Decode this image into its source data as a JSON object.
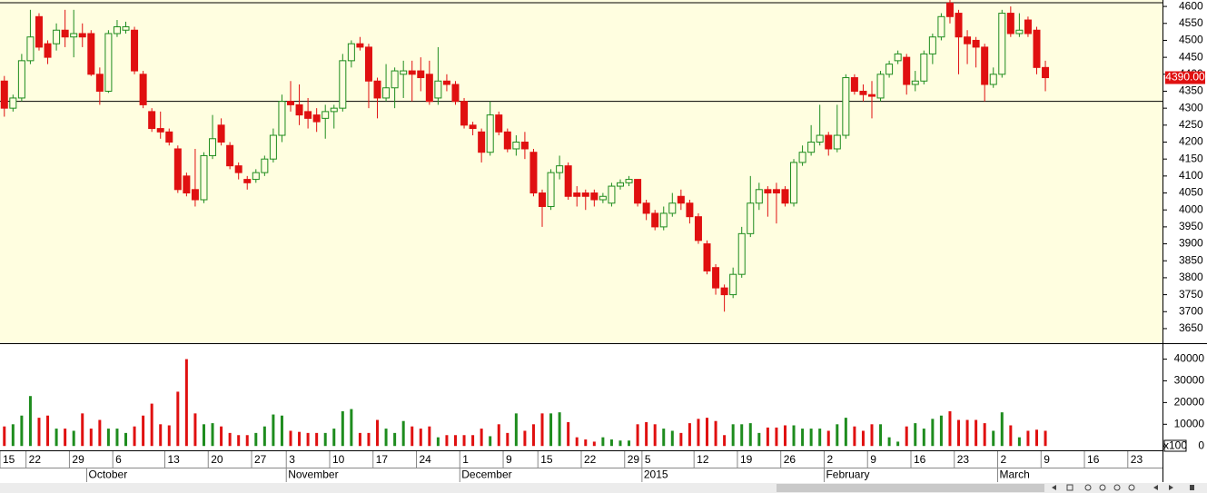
{
  "chart_data": {
    "type": "candlestick",
    "categories": [
      "15",
      null,
      null,
      "22",
      null,
      null,
      null,
      null,
      "29",
      null,
      null,
      null,
      null,
      "6",
      null,
      null,
      null,
      null,
      null,
      "13",
      null,
      null,
      null,
      null,
      "20",
      null,
      null,
      null,
      null,
      "27",
      null,
      null,
      null,
      "3",
      null,
      null,
      null,
      null,
      "10",
      null,
      null,
      null,
      null,
      "17",
      null,
      null,
      null,
      null,
      "24",
      null,
      null,
      null,
      null,
      "1",
      null,
      null,
      null,
      null,
      "9",
      null,
      null,
      null,
      "15",
      null,
      null,
      null,
      null,
      "22",
      null,
      null,
      null,
      null,
      "29",
      null,
      "5",
      null,
      null,
      null,
      null,
      null,
      "12",
      null,
      null,
      null,
      null,
      "19",
      null,
      null,
      null,
      null,
      "26",
      null,
      null,
      null,
      null,
      "2",
      null,
      null,
      null,
      null,
      "9",
      null,
      null,
      null,
      null,
      "16",
      null,
      null,
      null,
      null,
      "23",
      null,
      null,
      null,
      null,
      "2",
      null,
      null,
      null,
      null,
      "9",
      null,
      null,
      null,
      null,
      "16",
      null,
      null,
      null,
      null,
      "23",
      null,
      null,
      null
    ],
    "months": [
      null,
      null,
      null,
      null,
      null,
      null,
      null,
      null,
      null,
      null,
      "October",
      null,
      null,
      null,
      null,
      null,
      null,
      null,
      null,
      null,
      null,
      null,
      null,
      null,
      null,
      null,
      null,
      null,
      null,
      null,
      null,
      null,
      null,
      "November",
      null,
      null,
      null,
      null,
      null,
      null,
      null,
      null,
      null,
      null,
      null,
      null,
      null,
      null,
      null,
      null,
      null,
      null,
      null,
      "December",
      null,
      null,
      null,
      null,
      null,
      null,
      null,
      null,
      null,
      null,
      null,
      null,
      null,
      null,
      null,
      null,
      null,
      null,
      null,
      null,
      "2015",
      null,
      null,
      null,
      null,
      null,
      null,
      null,
      null,
      null,
      null,
      null,
      null,
      null,
      null,
      null,
      null,
      null,
      null,
      null,
      null,
      "February",
      null,
      null,
      null,
      null,
      null,
      null,
      null,
      null,
      null,
      null,
      null,
      null,
      null,
      null,
      null,
      null,
      null,
      null,
      null,
      "March",
      null,
      null,
      null,
      null,
      null,
      null,
      null,
      null,
      null,
      null,
      null,
      null,
      null,
      null,
      null,
      null,
      null,
      null
    ],
    "open": [
      4380,
      4300,
      4330,
      4440,
      4570,
      4490,
      4490,
      4530,
      4510,
      4520,
      4520,
      4400,
      4350,
      4520,
      4530,
      4530,
      4400,
      4290,
      4240,
      4230,
      4180,
      4100,
      4060,
      4030,
      4160,
      4250,
      4190,
      4130,
      4090,
      4090,
      4110,
      4150,
      4220,
      4320,
      4310,
      4290,
      4280,
      4270,
      4290,
      4300,
      4440,
      4490,
      4480,
      4380,
      4330,
      4360,
      4400,
      4410,
      4410,
      4400,
      4330,
      4380,
      4370,
      4320,
      4250,
      4230,
      4170,
      4280,
      4230,
      4180,
      4200,
      4170,
      4050,
      4010,
      4110,
      4130,
      4050,
      4050,
      4050,
      4030,
      4020,
      4070,
      4080,
      4090,
      4020,
      3990,
      3950,
      3990,
      4040,
      4020,
      3980,
      3900,
      3830,
      3770,
      3750,
      3810,
      3930,
      4020,
      4060,
      4060,
      4060,
      4020,
      4140,
      4170,
      4200,
      4220,
      4180,
      4220,
      4390,
      4350,
      4340,
      4330,
      4400,
      4440,
      4450,
      4370,
      4380,
      4460,
      4510,
      4610,
      4580,
      4510,
      4500,
      4480,
      4370,
      4400,
      4580,
      4520,
      4560,
      4530,
      4420,
      null,
      null,
      null,
      null,
      null,
      null,
      null,
      null,
      null,
      null,
      null,
      null,
      null
    ],
    "high": [
      4395,
      4340,
      4460,
      4590,
      4580,
      4500,
      4550,
      4590,
      4590,
      4550,
      4530,
      4420,
      4530,
      4560,
      4555,
      4540,
      4410,
      4300,
      4290,
      4240,
      4190,
      4110,
      4180,
      4170,
      4280,
      4270,
      4200,
      4140,
      4100,
      4120,
      4160,
      4240,
      4340,
      4380,
      4370,
      4330,
      4300,
      4310,
      4310,
      4460,
      4500,
      4510,
      4490,
      4390,
      4430,
      4420,
      4440,
      4440,
      4450,
      4440,
      4480,
      4400,
      4380,
      4330,
      4260,
      4240,
      4320,
      4290,
      4240,
      4220,
      4230,
      4180,
      4060,
      4120,
      4160,
      4140,
      4070,
      4060,
      4060,
      4050,
      4080,
      4090,
      4100,
      4090,
      4030,
      4000,
      4010,
      4050,
      4060,
      4030,
      3990,
      3910,
      3840,
      3780,
      3830,
      3950,
      4100,
      4080,
      4070,
      4080,
      4070,
      4150,
      4190,
      4250,
      4310,
      4230,
      4310,
      4400,
      4400,
      4370,
      4380,
      4410,
      4440,
      4470,
      4460,
      4410,
      4470,
      4520,
      4580,
      4620,
      4590,
      4530,
      4510,
      4490,
      4420,
      4590,
      4600,
      4580,
      4570,
      4540,
      4440,
      null,
      null,
      null,
      null,
      null,
      null,
      null,
      null,
      null,
      null,
      null,
      null,
      null
    ],
    "low": [
      4275,
      4290,
      4320,
      4430,
      4470,
      4430,
      4470,
      4480,
      4450,
      4480,
      4395,
      4310,
      4345,
      4510,
      4520,
      4400,
      4300,
      4230,
      4210,
      4190,
      4050,
      4040,
      4010,
      4020,
      4150,
      4190,
      4120,
      4090,
      4060,
      4080,
      4100,
      4140,
      4200,
      4290,
      4250,
      4240,
      4230,
      4210,
      4240,
      4290,
      4420,
      4470,
      4300,
      4270,
      4320,
      4300,
      4330,
      4320,
      4350,
      4310,
      4310,
      4350,
      4310,
      4240,
      4220,
      4140,
      4160,
      4220,
      4170,
      4160,
      4150,
      4040,
      3950,
      4000,
      4090,
      4030,
      4010,
      4000,
      4010,
      4020,
      4010,
      4060,
      4070,
      4010,
      3970,
      3940,
      3940,
      3980,
      4000,
      3960,
      3900,
      3810,
      3750,
      3700,
      3740,
      3800,
      3920,
      4000,
      3980,
      3960,
      4010,
      4010,
      4130,
      4160,
      4190,
      4160,
      4170,
      4210,
      4340,
      4320,
      4270,
      4320,
      4390,
      4430,
      4340,
      4350,
      4370,
      4430,
      4500,
      4550,
      4400,
      4430,
      4420,
      4320,
      4360,
      4390,
      4510,
      4510,
      4510,
      4400,
      4350,
      null,
      null,
      null,
      null,
      null,
      null,
      null,
      null,
      null,
      null,
      null,
      null,
      null
    ],
    "close": [
      4300,
      4330,
      4440,
      4510,
      4480,
      4450,
      4530,
      4510,
      4520,
      4510,
      4400,
      4350,
      4520,
      4540,
      4540,
      4410,
      4310,
      4240,
      4230,
      4200,
      4060,
      4050,
      4030,
      4160,
      4210,
      4200,
      4130,
      4110,
      4080,
      4110,
      4150,
      4220,
      4320,
      4310,
      4280,
      4270,
      4260,
      4290,
      4300,
      4440,
      4490,
      4480,
      4380,
      4330,
      4360,
      4410,
      4410,
      4400,
      4390,
      4320,
      4380,
      4370,
      4320,
      4250,
      4240,
      4170,
      4280,
      4230,
      4180,
      4200,
      4180,
      4050,
      4010,
      4110,
      4130,
      4040,
      4040,
      4040,
      4030,
      4040,
      4070,
      4080,
      4090,
      4020,
      3990,
      3950,
      3990,
      4020,
      4020,
      3980,
      3910,
      3820,
      3770,
      3750,
      3810,
      3930,
      4020,
      4060,
      4050,
      4050,
      4020,
      4140,
      4170,
      4200,
      4220,
      4180,
      4220,
      4390,
      4350,
      4340,
      4335,
      4400,
      4430,
      4460,
      4370,
      4380,
      4460,
      4510,
      4570,
      4570,
      4510,
      4490,
      4480,
      4370,
      4400,
      4580,
      4520,
      4530,
      4520,
      4420,
      4390,
      null,
      null,
      null,
      null,
      null,
      null,
      null,
      null,
      null,
      null,
      null,
      null,
      null
    ],
    "up_color": "#1e8c1e",
    "down_color": "#e01010",
    "ylim": [
      3607,
      4619
    ],
    "yticks": [
      3650,
      3700,
      3750,
      3800,
      3850,
      3900,
      3950,
      4000,
      4050,
      4100,
      4150,
      4200,
      4250,
      4300,
      4350,
      4400,
      4450,
      4500,
      4550,
      4600
    ],
    "reference_line": 4320,
    "last_price": {
      "value": 4390,
      "label": "4390.00"
    },
    "volume": {
      "values": [
        9000,
        10000,
        14000,
        23000,
        13000,
        14000,
        8000,
        8000,
        7000,
        15000,
        8000,
        12000,
        8000,
        8000,
        6000,
        9000,
        14000,
        19500,
        10000,
        9500,
        25000,
        40000,
        15000,
        10000,
        10500,
        9000,
        6000,
        5000,
        5000,
        6000,
        9000,
        14500,
        14000,
        7000,
        6500,
        6000,
        6000,
        6000,
        8000,
        16000,
        17000,
        6000,
        6000,
        12000,
        8000,
        6000,
        11500,
        9000,
        8000,
        9000,
        4000,
        5000,
        5000,
        5000,
        5000,
        8000,
        4500,
        10000,
        6000,
        15000,
        7000,
        10000,
        15000,
        15000,
        15500,
        11000,
        4000,
        3000,
        2000,
        4000,
        3000,
        2500,
        2500,
        10000,
        11000,
        10000,
        8000,
        7000,
        6000,
        10500,
        12500,
        13000,
        11500,
        5000,
        10000,
        10000,
        10500,
        6000,
        8500,
        8500,
        9500,
        9500,
        8000,
        8000,
        8000,
        7000,
        10000,
        13000,
        9000,
        7000,
        10000,
        10000,
        4000,
        2000,
        9000,
        10500,
        8000,
        12500,
        14000,
        16000,
        12000,
        12000,
        12000,
        10500,
        7000,
        15500,
        9500,
        4000,
        7000,
        7500,
        7000,
        null,
        null,
        null,
        null,
        null,
        null,
        null,
        null,
        null,
        null,
        null,
        null,
        null
      ],
      "ylim": [
        -2000,
        46500
      ],
      "yticks": [
        0,
        10000,
        20000,
        30000,
        40000
      ],
      "unit_label": "x100"
    }
  }
}
